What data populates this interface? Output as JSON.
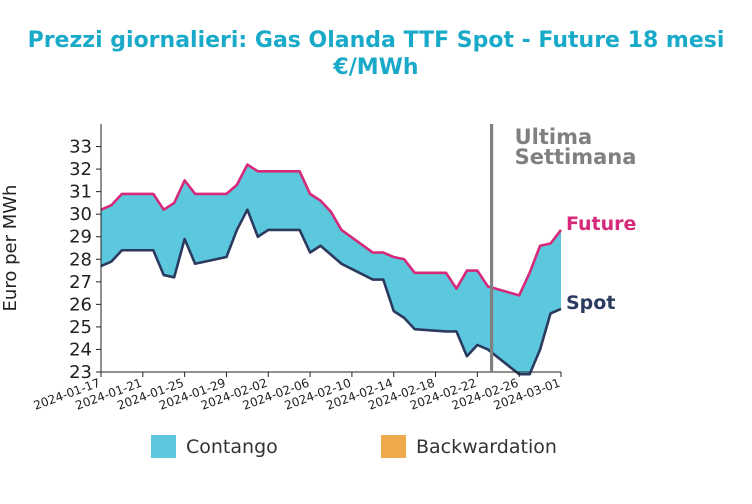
{
  "chart_data": {
    "type": "area",
    "title_line1": "Prezzi giornalieri: Gas Olanda TTF Spot - Future 18 mesi",
    "title_line2": "€/MWh",
    "ylabel": "Euro per MWh",
    "xlabel": "",
    "ylim": [
      23,
      34
    ],
    "yticks": [
      23,
      24,
      25,
      26,
      27,
      28,
      29,
      30,
      31,
      32,
      33
    ],
    "x_start": "2024-01-17",
    "x_end": "2024-03-01",
    "xticks": [
      "2024-01-17",
      "2024-01-21",
      "2024-01-25",
      "2024-01-29",
      "2024-02-02",
      "2024-02-06",
      "2024-02-10",
      "2024-02-14",
      "2024-02-18",
      "2024-02-22",
      "2024-02-26",
      "2024-03-01"
    ],
    "dates": [
      "2024-01-17",
      "2024-01-18",
      "2024-01-19",
      "2024-01-22",
      "2024-01-23",
      "2024-01-24",
      "2024-01-25",
      "2024-01-26",
      "2024-01-29",
      "2024-01-30",
      "2024-01-31",
      "2024-02-01",
      "2024-02-02",
      "2024-02-05",
      "2024-02-06",
      "2024-02-07",
      "2024-02-08",
      "2024-02-09",
      "2024-02-12",
      "2024-02-13",
      "2024-02-14",
      "2024-02-15",
      "2024-02-16",
      "2024-02-19",
      "2024-02-20",
      "2024-02-21",
      "2024-02-22",
      "2024-02-23",
      "2024-02-26",
      "2024-02-27",
      "2024-02-28",
      "2024-02-29",
      "2024-03-01"
    ],
    "series": [
      {
        "name": "Future",
        "color": "#d6297a",
        "values": [
          30.2,
          30.4,
          30.9,
          30.9,
          30.2,
          30.5,
          31.5,
          30.9,
          30.9,
          31.3,
          32.2,
          31.9,
          31.9,
          31.9,
          30.9,
          30.6,
          30.1,
          29.3,
          28.3,
          28.3,
          28.1,
          28.0,
          27.4,
          27.4,
          26.7,
          27.5,
          27.5,
          26.8,
          26.4,
          27.4,
          28.6,
          28.7,
          29.3
        ]
      },
      {
        "name": "Spot",
        "color": "#2b3a5e",
        "values": [
          27.7,
          27.9,
          28.4,
          28.4,
          27.3,
          27.2,
          28.9,
          27.8,
          28.1,
          29.3,
          30.2,
          29.0,
          29.3,
          29.3,
          28.3,
          28.6,
          28.2,
          27.8,
          27.1,
          27.1,
          25.7,
          25.4,
          24.9,
          24.8,
          24.8,
          23.7,
          24.2,
          24.0,
          22.9,
          22.9,
          24.0,
          25.6,
          25.8
        ]
      }
    ],
    "annotation": {
      "date": "2024-02-23",
      "line1": "Ultima",
      "line2": "Settimana",
      "color": "#808080"
    },
    "legend": [
      {
        "label": "Contango",
        "color": "#5bc8de"
      },
      {
        "label": "Backwardation",
        "color": "#efab4b"
      }
    ],
    "legend_placement": "bottom",
    "grid": false
  }
}
